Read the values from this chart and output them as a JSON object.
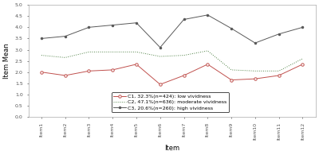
{
  "items": [
    "Item1",
    "Item2",
    "Item3",
    "Item4",
    "Item5",
    "Item6",
    "Item7",
    "Item8",
    "Item9",
    "Item10",
    "Item11",
    "Item12"
  ],
  "c1_values": [
    2.0,
    1.85,
    2.05,
    2.1,
    2.35,
    1.45,
    1.85,
    2.35,
    1.65,
    1.7,
    1.85,
    2.35
  ],
  "c2_values": [
    2.75,
    2.65,
    2.9,
    2.9,
    2.9,
    2.7,
    2.75,
    2.95,
    2.1,
    2.05,
    2.05,
    2.6
  ],
  "c3_values": [
    3.5,
    3.6,
    4.0,
    4.1,
    4.2,
    3.1,
    4.35,
    4.55,
    3.95,
    3.3,
    3.7,
    4.0
  ],
  "c1_color": "#c0504d",
  "c2_color": "#4f8145",
  "c3_color": "#595959",
  "c1_label": "C1, 32.3%(n=424): low vividness",
  "c2_label": "C2, 47.1%(n=636): moderate vividness",
  "c3_label": "C3, 20.6%(n=260): high vividness",
  "ylabel": "Item Mean",
  "xlabel": "Item",
  "ylim": [
    0,
    5
  ],
  "yticks": [
    0,
    0.5,
    1.0,
    1.5,
    2.0,
    2.5,
    3.0,
    3.5,
    4.0,
    4.5,
    5.0
  ],
  "background_color": "#ffffff",
  "legend_fontsize": 4.5,
  "axis_fontsize": 6,
  "tick_fontsize": 4.5
}
